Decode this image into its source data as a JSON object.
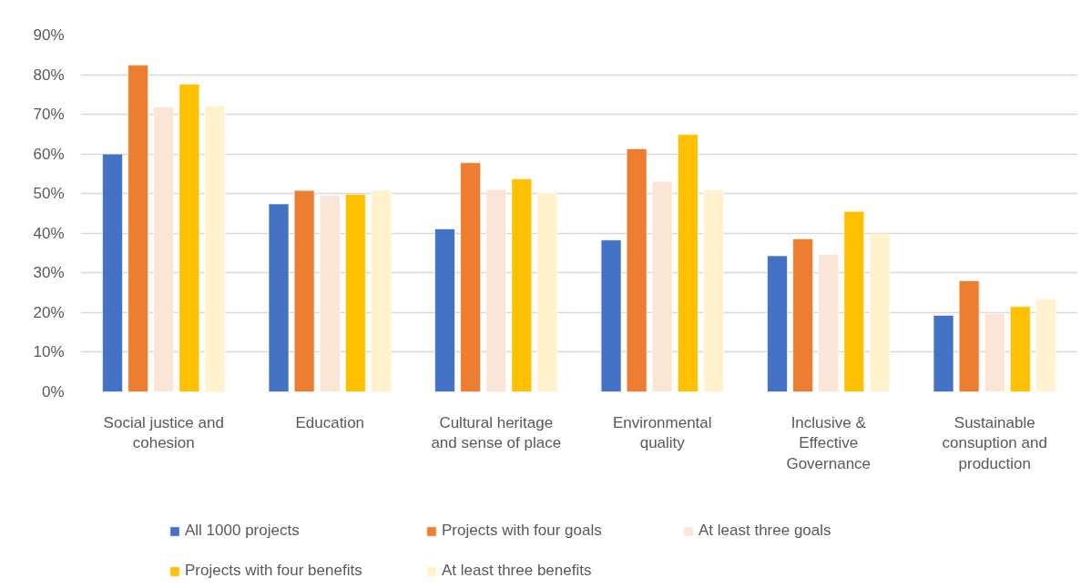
{
  "chart_data": {
    "type": "bar",
    "categories": [
      "Social justice and cohesion",
      "Education",
      "Cultural heritage and sense of place",
      "Environmental quality",
      "Inclusive & Effective Governance",
      "Sustainable consuption and production"
    ],
    "series": [
      {
        "name": "All 1000 projects",
        "color": "#4472c4",
        "values": [
          60.0,
          47.4,
          41.1,
          38.3,
          34.3,
          19.3
        ]
      },
      {
        "name": "Projects with four goals",
        "color": "#ed7d31",
        "values": [
          82.4,
          50.8,
          57.8,
          61.3,
          38.6,
          28.0
        ]
      },
      {
        "name": "At least three goals",
        "color": "#fbe5d6",
        "values": [
          71.9,
          49.5,
          51.0,
          53.1,
          34.6,
          19.8
        ]
      },
      {
        "name": "Projects with four benefits",
        "color": "#ffc000",
        "values": [
          77.6,
          49.8,
          53.7,
          64.9,
          45.5,
          21.5
        ]
      },
      {
        "name": "At least three benefits",
        "color": "#fff2cc",
        "values": [
          72.1,
          50.8,
          50.2,
          50.9,
          39.8,
          23.5
        ]
      }
    ],
    "ylim": [
      0,
      90
    ],
    "yticks": [
      {
        "value": 0,
        "label": "0%"
      },
      {
        "value": 10,
        "label": "10%"
      },
      {
        "value": 20,
        "label": "20%"
      },
      {
        "value": 30,
        "label": "30%"
      },
      {
        "value": 40,
        "label": "40%"
      },
      {
        "value": 50,
        "label": "50%"
      },
      {
        "value": 60,
        "label": "60%"
      },
      {
        "value": 70,
        "label": "70%"
      },
      {
        "value": 80,
        "label": "80%"
      },
      {
        "value": 90,
        "label": "90%"
      }
    ],
    "grid": "y",
    "legend": "bottom"
  }
}
